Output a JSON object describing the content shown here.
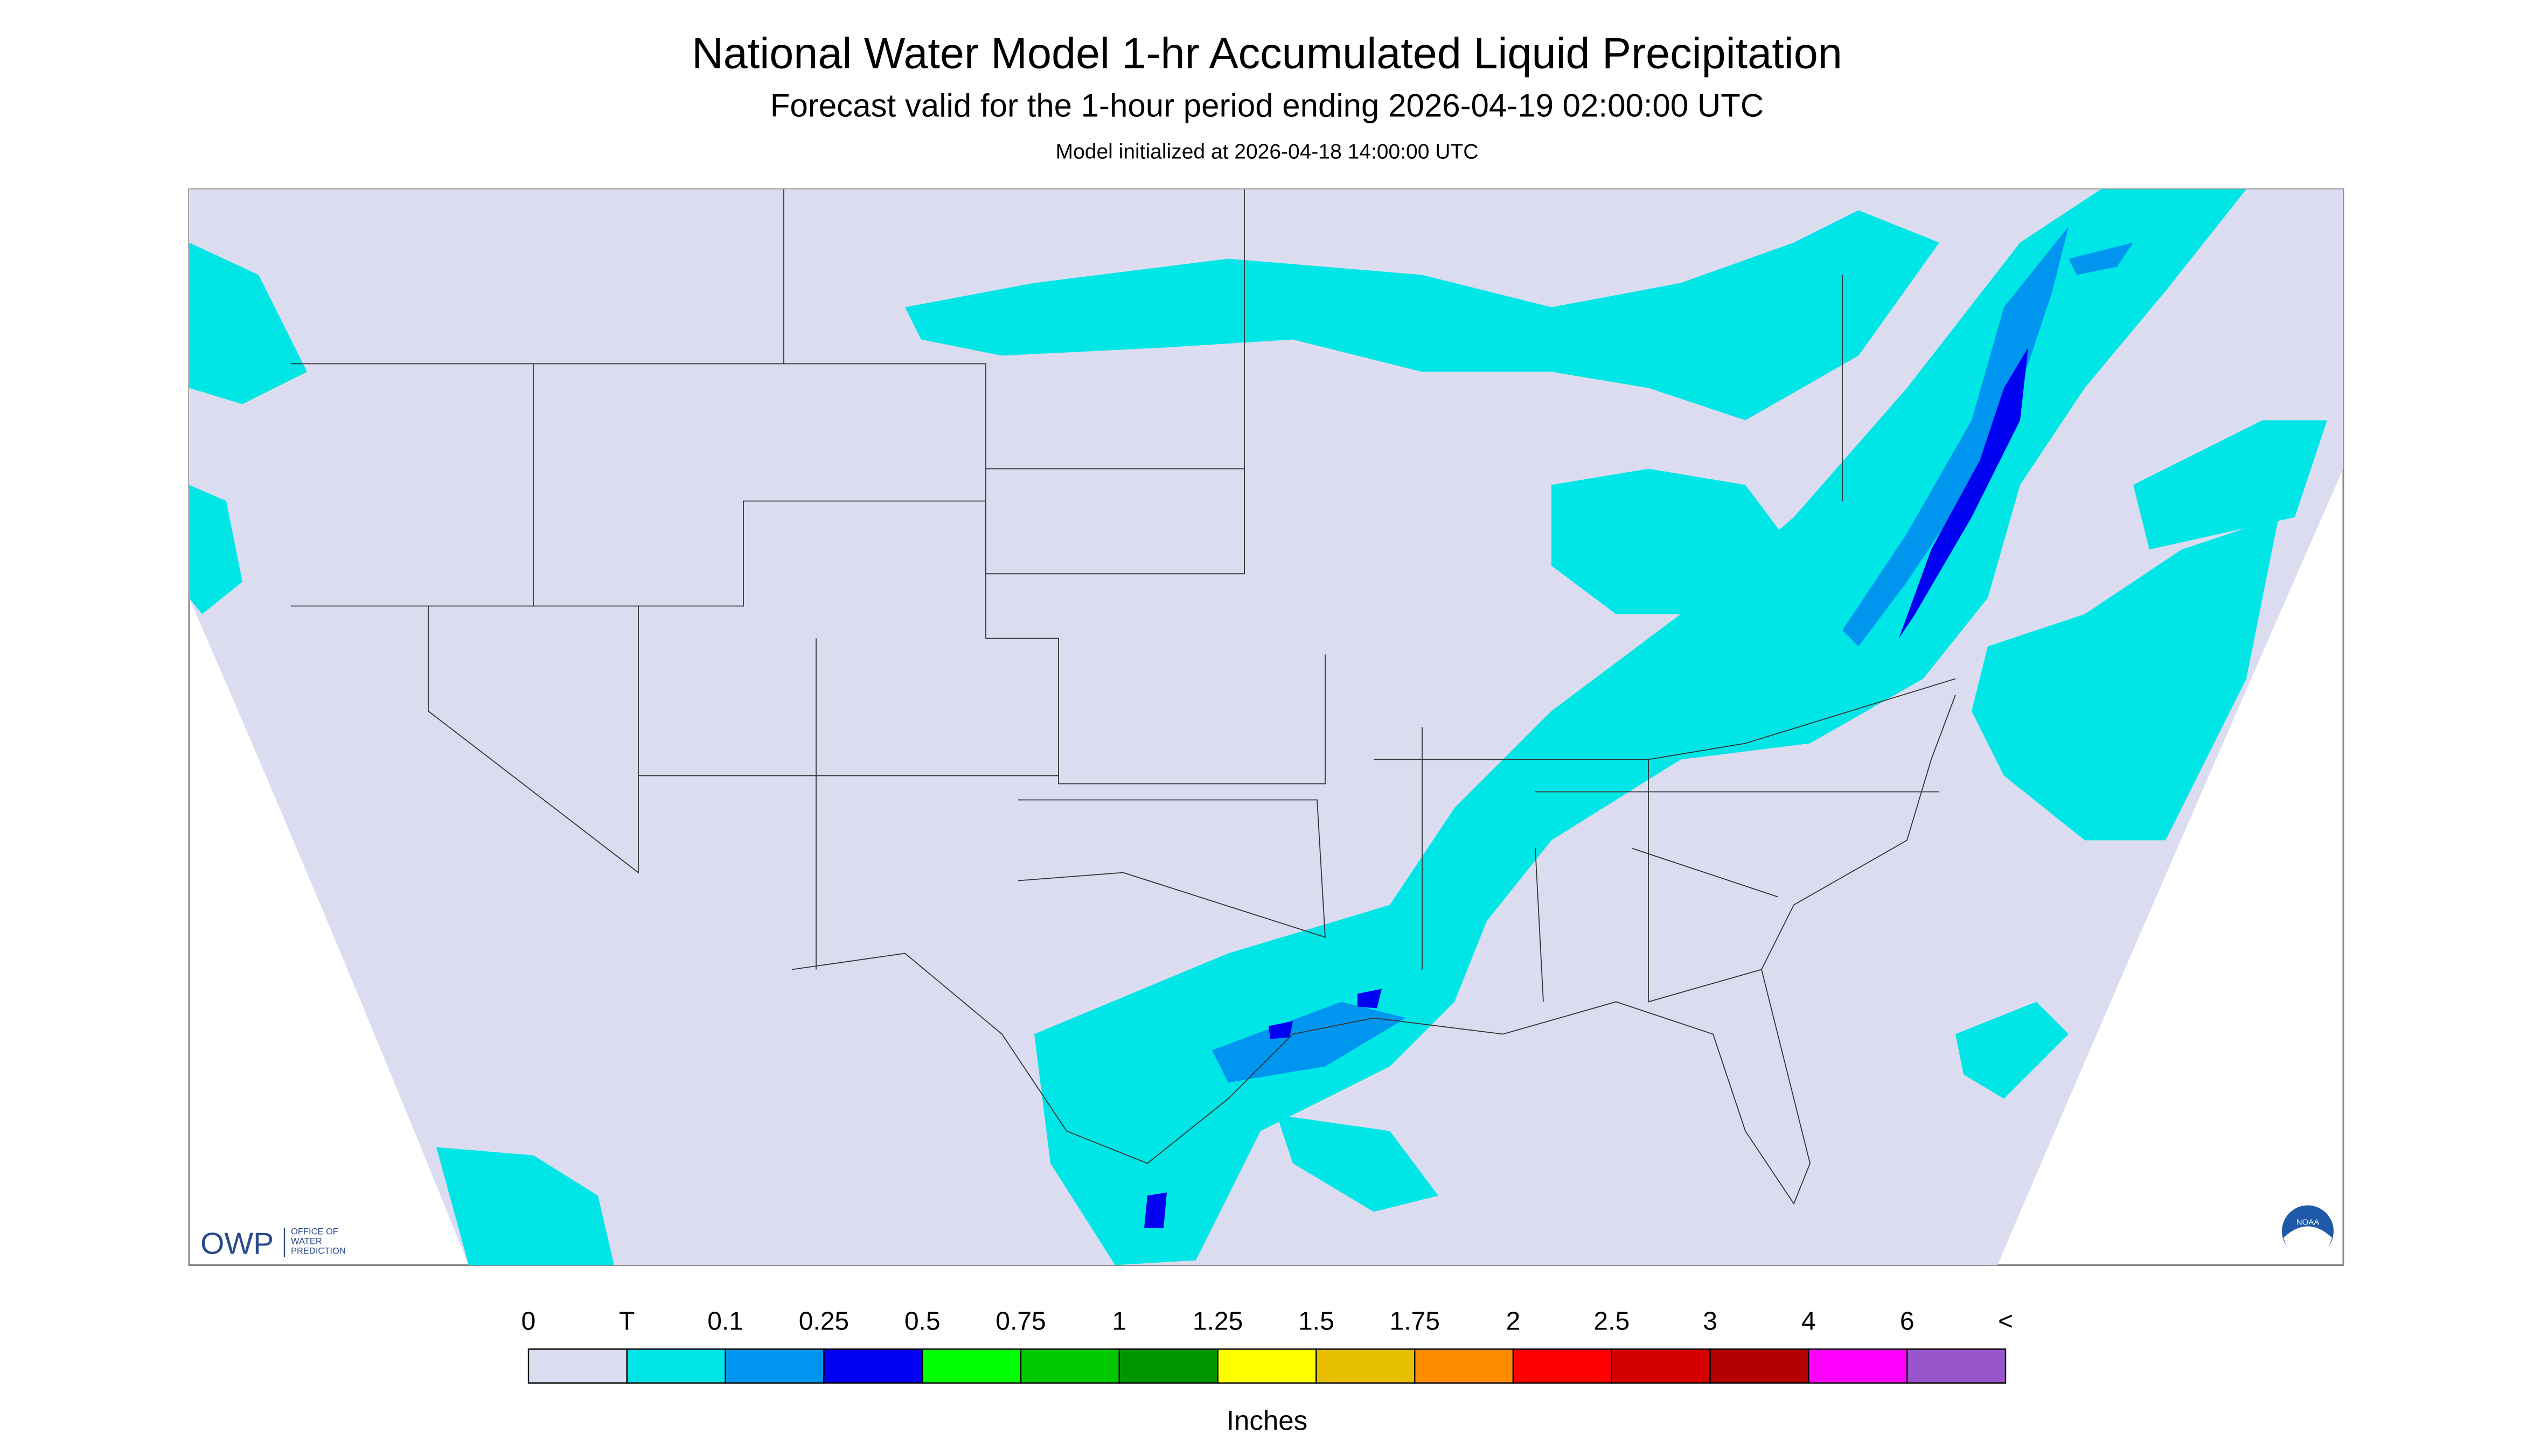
{
  "header": {
    "title": "National Water Model 1-hr Accumulated Liquid Precipitation",
    "subtitle": "Forecast valid for the 1-hour period ending 2026-04-19 02:00:00 UTC",
    "note": "Model initialized at 2026-04-18 14:00:00 UTC"
  },
  "logos": {
    "owp": "OWP",
    "owp_text": [
      "OFFICE OF",
      "WATER",
      "PREDICTION"
    ],
    "noaa": "NOAA"
  },
  "legend": {
    "labels": [
      "0",
      "T",
      "0.1",
      "0.25",
      "0.5",
      "0.75",
      "1",
      "1.25",
      "1.5",
      "1.75",
      "2",
      "2.5",
      "3",
      "4",
      "6",
      "<"
    ],
    "colors": [
      "#dcdcf0",
      "#00e6e6",
      "#0096f0",
      "#0000f0",
      "#00ff00",
      "#00c800",
      "#009600",
      "#ffff00",
      "#e6be00",
      "#ff8c00",
      "#ff0000",
      "#d40000",
      "#b40000",
      "#ff00ff",
      "#9955cc"
    ],
    "unit": "Inches"
  }
}
